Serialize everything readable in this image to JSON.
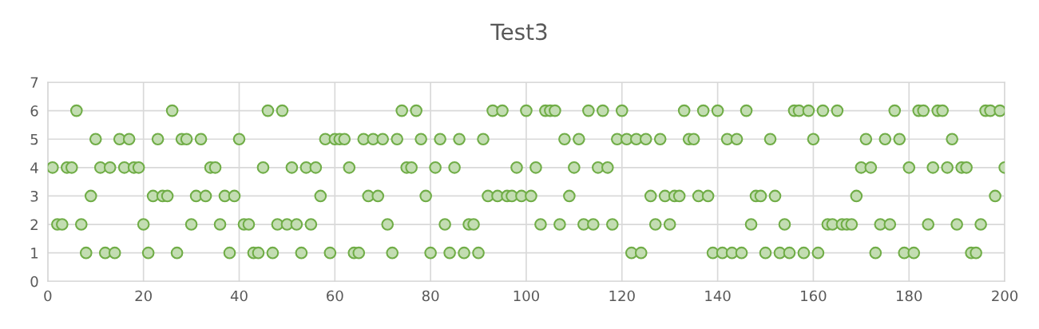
{
  "chart_data": {
    "type": "scatter",
    "title": "Test3",
    "x": [
      1,
      2,
      3,
      4,
      5,
      6,
      7,
      8,
      9,
      10,
      11,
      12,
      13,
      14,
      15,
      16,
      17,
      18,
      19,
      20,
      21,
      22,
      23,
      24,
      25,
      26,
      27,
      28,
      29,
      30,
      31,
      32,
      33,
      34,
      35,
      36,
      37,
      38,
      39,
      40,
      41,
      42,
      43,
      44,
      45,
      46,
      47,
      48,
      49,
      50,
      51,
      52,
      53,
      54,
      55,
      56,
      57,
      58,
      59,
      60,
      61,
      62,
      63,
      64,
      65,
      66,
      67,
      68,
      69,
      70,
      71,
      72,
      73,
      74,
      75,
      76,
      77,
      78,
      79,
      80,
      81,
      82,
      83,
      84,
      85,
      86,
      87,
      88,
      89,
      90,
      91,
      92,
      93,
      94,
      95,
      96,
      97,
      98,
      99,
      100,
      101,
      102,
      103,
      104,
      105,
      106,
      107,
      108,
      109,
      110,
      111,
      112,
      113,
      114,
      115,
      116,
      117,
      118,
      119,
      120,
      121,
      122,
      123,
      124,
      125,
      126,
      127,
      128,
      129,
      130,
      131,
      132,
      133,
      134,
      135,
      136,
      137,
      138,
      139,
      140,
      141,
      142,
      143,
      144,
      145,
      146,
      147,
      148,
      149,
      150,
      151,
      152,
      153,
      154,
      155,
      156,
      157,
      158,
      159,
      160,
      161,
      162,
      163,
      164,
      165,
      166,
      167,
      168,
      169,
      170,
      171,
      172,
      173,
      174,
      175,
      176,
      177,
      178,
      179,
      180,
      181,
      182,
      183,
      184,
      185,
      186,
      187,
      188,
      189,
      190,
      191,
      192,
      193,
      194,
      195,
      196,
      197,
      198,
      199,
      200
    ],
    "series": [
      {
        "color": "#70ad47",
        "values": [
          4,
          2,
          2,
          4,
          4,
          6,
          2,
          1,
          3,
          5,
          4,
          1,
          4,
          1,
          5,
          4,
          5,
          4,
          4,
          2,
          1,
          3,
          5,
          3,
          3,
          6,
          1,
          5,
          5,
          2,
          3,
          5,
          3,
          4,
          4,
          2,
          3,
          1,
          3,
          5,
          2,
          2,
          1,
          1,
          4,
          6,
          1,
          2,
          6,
          2,
          4,
          2,
          1,
          4,
          2,
          4,
          3,
          5,
          1,
          5,
          5,
          5,
          4,
          1,
          1,
          5,
          3,
          5,
          3,
          5,
          2,
          1,
          5,
          6,
          4,
          4,
          6,
          5,
          3,
          1,
          4,
          5,
          2,
          1,
          4,
          5,
          1,
          2,
          2,
          1,
          5,
          3,
          6,
          3,
          6,
          3,
          3,
          4,
          3,
          6,
          3,
          4,
          2,
          6,
          6,
          6,
          2,
          5,
          3,
          4,
          5,
          2,
          6,
          2,
          4,
          6,
          4,
          2,
          5,
          6,
          5,
          1,
          5,
          1,
          5,
          3,
          2,
          5,
          3,
          2,
          3,
          3,
          6,
          5,
          5,
          3,
          6,
          3,
          1,
          6,
          1,
          5,
          1,
          5,
          1,
          6,
          2,
          3,
          3,
          1,
          5,
          3,
          1,
          2,
          1,
          6,
          6,
          1,
          6,
          5,
          1,
          6,
          2,
          2,
          6,
          2,
          2,
          2,
          3,
          4,
          5,
          4,
          1,
          2,
          5,
          2,
          6,
          5,
          1,
          4,
          1,
          6,
          6,
          2,
          4,
          6,
          6,
          4,
          5,
          2,
          4,
          4,
          1,
          1,
          2,
          6,
          6,
          3,
          6,
          4
        ]
      }
    ],
    "xlim": [
      0,
      200
    ],
    "xticks": [
      0,
      20,
      40,
      60,
      80,
      100,
      120,
      140,
      160,
      180,
      200
    ],
    "ylim": [
      0,
      7
    ],
    "yticks": [
      0,
      1,
      2,
      3,
      4,
      5,
      6,
      7
    ],
    "grid": true,
    "marker": "circle"
  }
}
